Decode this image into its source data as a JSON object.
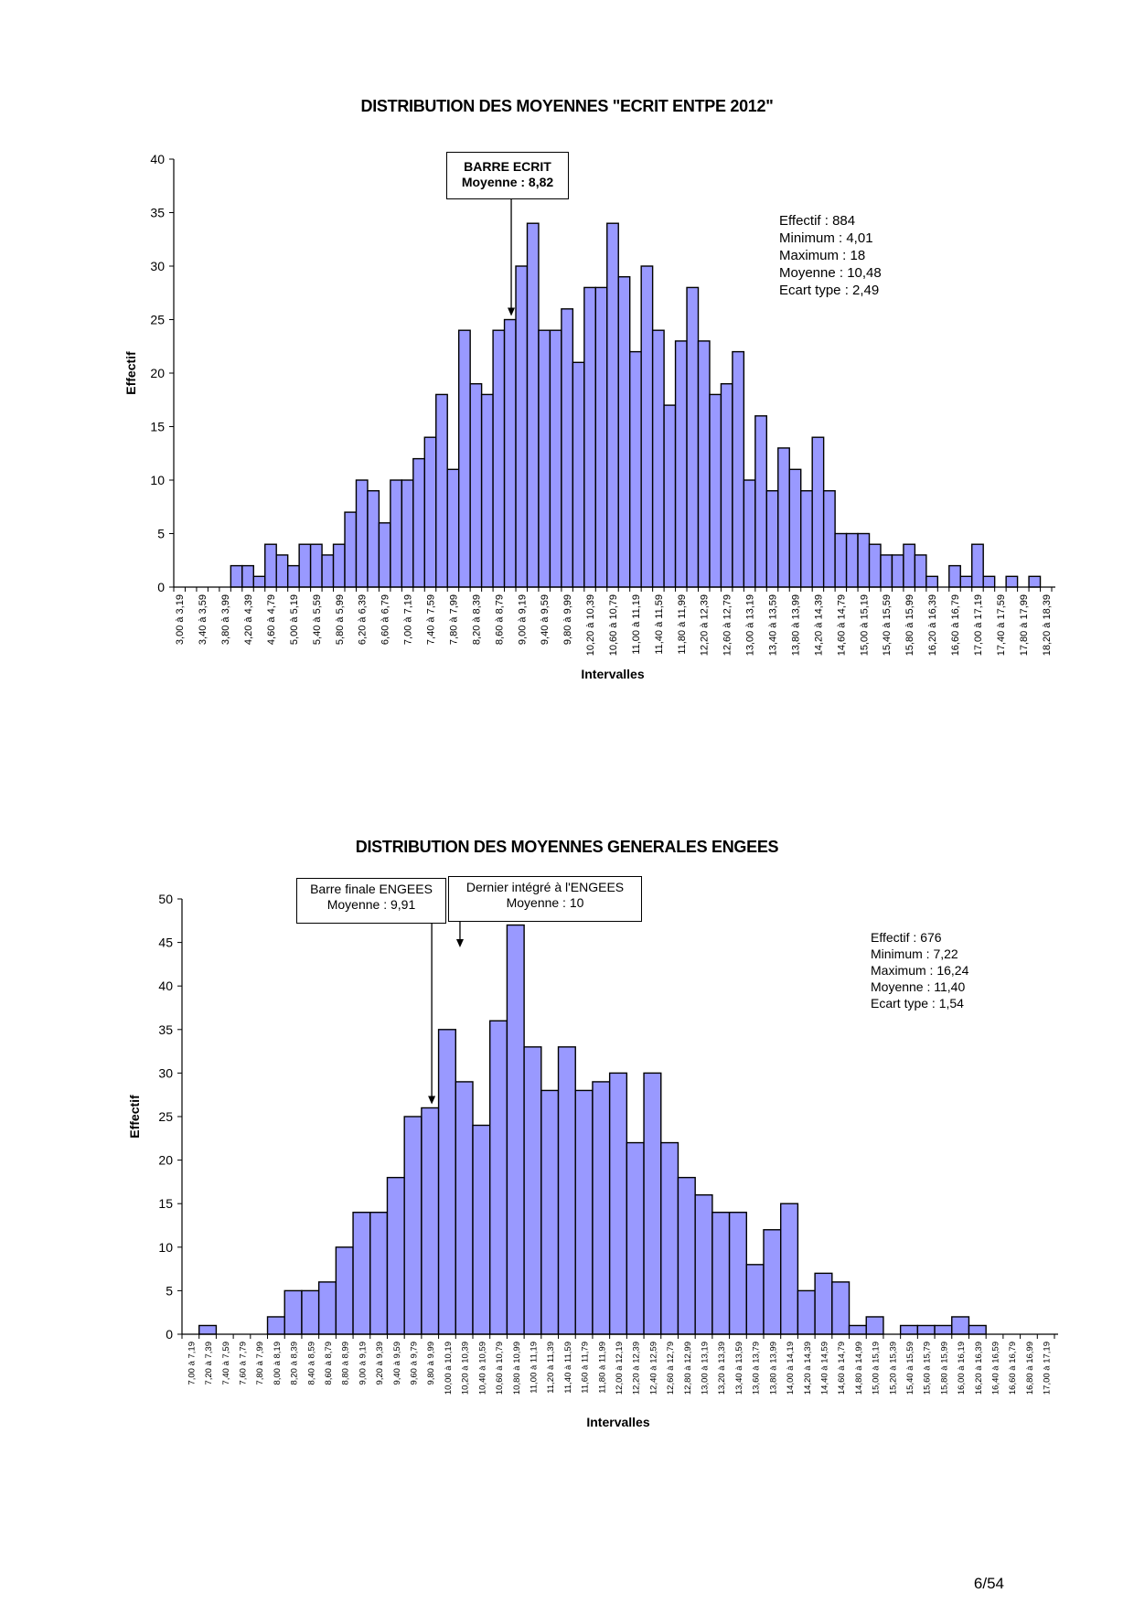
{
  "page": {
    "number": "6/54"
  },
  "chart_data": [
    {
      "type": "bar",
      "title": "DISTRIBUTION DES MOYENNES \"ECRIT ENTPE 2012\"",
      "xlabel": "Intervalles",
      "ylabel": "Effectif",
      "ylim": [
        0,
        40
      ],
      "yticks": [
        0,
        5,
        10,
        15,
        20,
        25,
        30,
        35,
        40
      ],
      "label_every": 2,
      "bar_color": "#9999FF",
      "categories": [
        "3,00 à 3,19",
        "3,20 à 3,39",
        "3,40 à 3,59",
        "3,60 à 3,79",
        "3,80 à 3,99",
        "4,00 à 4,19",
        "4,20 à 4,39",
        "4,40 à 4,59",
        "4,60 à 4,79",
        "4,80 à 4,99",
        "5,00 à 5,19",
        "5,20 à 5,39",
        "5,40 à 5,59",
        "5,60 à 5,79",
        "5,80 à 5,99",
        "6,00 à 6,19",
        "6,20 à 6,39",
        "6,40 à 6,59",
        "6,60 à 6,79",
        "6,80 à 6,99",
        "7,00 à 7,19",
        "7,20 à 7,39",
        "7,40 à 7,59",
        "7,60 à 7,79",
        "7,80 à 7,99",
        "8,00 à 8,19",
        "8,20 à 8,39",
        "8,40 à 8,59",
        "8,60 à 8,79",
        "8,80 à 8,99",
        "9,00 à 9,19",
        "9,20 à 9,39",
        "9,40 à 9,59",
        "9,60 à 9,79",
        "9,80 à 9,99",
        "10,00 à 10,19",
        "10,20 à 10,39",
        "10,40 à 10,59",
        "10,60 à 10,79",
        "10,80 à 10,99",
        "11,00 à 11,19",
        "11,20 à 11,39",
        "11,40 à 11,59",
        "11,60 à 11,79",
        "11,80 à 11,99",
        "12,00 à 12,19",
        "12,20 à 12,39",
        "12,40 à 12,59",
        "12,60 à 12,79",
        "12,80 à 12,99",
        "13,00 à 13,19",
        "13,20 à 13,39",
        "13,40 à 13,59",
        "13,60 à 13,79",
        "13,80 à 13,99",
        "14,00 à 14,19",
        "14,20 à 14,39",
        "14,40 à 14,59",
        "14,60 à 14,79",
        "14,80 à 14,99",
        "15,00 à 15,19",
        "15,20 à 15,39",
        "15,40 à 15,59",
        "15,60 à 15,79",
        "15,80 à 15,99",
        "16,00 à 16,19",
        "16,20 à 16,39",
        "16,40 à 16,59",
        "16,60 à 16,79",
        "16,80 à 16,99",
        "17,00 à 17,19",
        "17,20 à 17,39",
        "17,40 à 17,59",
        "17,60 à 17,79",
        "17,80 à 17,99",
        "18,00 à 18,19",
        "18,20 à 18,39"
      ],
      "values": [
        0,
        0,
        0,
        0,
        0,
        2,
        2,
        1,
        4,
        3,
        2,
        4,
        4,
        3,
        4,
        7,
        10,
        9,
        6,
        10,
        10,
        12,
        14,
        18,
        11,
        24,
        19,
        18,
        24,
        25,
        30,
        34,
        24,
        24,
        26,
        21,
        28,
        28,
        34,
        29,
        22,
        30,
        24,
        17,
        23,
        28,
        23,
        18,
        19,
        22,
        10,
        16,
        9,
        13,
        11,
        9,
        14,
        9,
        5,
        5,
        5,
        4,
        3,
        3,
        4,
        3,
        1,
        0,
        2,
        1,
        4,
        1,
        0,
        1,
        0,
        1,
        0
      ],
      "annotations": [
        {
          "lines": [
            "BARRE ECRIT",
            "Moyenne : 8,82"
          ],
          "value": 8.82,
          "bold": true
        }
      ],
      "stats": [
        "Effectif : 884",
        "Minimum : 4,01",
        "Maximum : 18",
        "Moyenne : 10,48",
        "Ecart type : 2,49"
      ]
    },
    {
      "type": "bar",
      "title": "DISTRIBUTION DES MOYENNES GENERALES ENGEES",
      "xlabel": "Intervalles",
      "ylabel": "Effectif",
      "ylim": [
        0,
        50
      ],
      "yticks": [
        0,
        5,
        10,
        15,
        20,
        25,
        30,
        35,
        40,
        45,
        50
      ],
      "label_every": 1,
      "bar_color": "#9999FF",
      "categories": [
        "7,00 à 7,19",
        "7,20 à 7,39",
        "7,40 à 7,59",
        "7,60 à 7,79",
        "7,80 à 7,99",
        "8,00 à 8,19",
        "8,20 à 8,39",
        "8,40 à 8,59",
        "8,60 à 8,79",
        "8,80 à 8,99",
        "9,00 à 9,19",
        "9,20 à 9,39",
        "9,40 à 9,59",
        "9,60 à 9,79",
        "9,80 à 9,99",
        "10,00 à 10,19",
        "10,20 à 10,39",
        "10,40 à 10,59",
        "10,60 à 10,79",
        "10,80 à 10,99",
        "11,00 à 11,19",
        "11,20 à 11,39",
        "11,40 à 11,59",
        "11,60 à 11,79",
        "11,80 à 11,99",
        "12,00 à 12,19",
        "12,20 à 12,39",
        "12,40 à 12,59",
        "12,60 à 12,79",
        "12,80 à 12,99",
        "13,00 à 13,19",
        "13,20 à 13,39",
        "13,40 à 13,59",
        "13,60 à 13,79",
        "13,80 à 13,99",
        "14,00 à 14,19",
        "14,20 à 14,39",
        "14,40 à 14,59",
        "14,60 à 14,79",
        "14,80 à 14,99",
        "15,00 à 15,19",
        "15,20 à 15,39",
        "15,40 à 15,59",
        "15,60 à 15,79",
        "15,80 à 15,99",
        "16,00 à 16,19",
        "16,20 à 16,39",
        "16,40 à 16,59",
        "16,60 à 16,79",
        "16,80 à 16,99",
        "17,00 à 17,19"
      ],
      "values": [
        0,
        1,
        0,
        0,
        0,
        2,
        5,
        5,
        6,
        10,
        14,
        14,
        18,
        25,
        26,
        35,
        29,
        24,
        36,
        47,
        33,
        28,
        33,
        28,
        29,
        30,
        22,
        30,
        22,
        18,
        16,
        14,
        14,
        8,
        12,
        15,
        5,
        7,
        6,
        1,
        2,
        0,
        1,
        1,
        1,
        2,
        1,
        0,
        0,
        0,
        0
      ],
      "annotations": [
        {
          "lines": [
            "Barre finale ENGEES",
            "Moyenne : 9,91"
          ],
          "value": 9.91,
          "bold": false
        },
        {
          "lines": [
            "Dernier intégré à l'ENGEES",
            "Moyenne : 10"
          ],
          "value": 10,
          "bold": false
        }
      ],
      "stats": [
        "Effectif : 676",
        "Minimum : 7,22",
        "Maximum : 16,24",
        "Moyenne : 11,40",
        "Ecart type : 1,54"
      ]
    }
  ]
}
